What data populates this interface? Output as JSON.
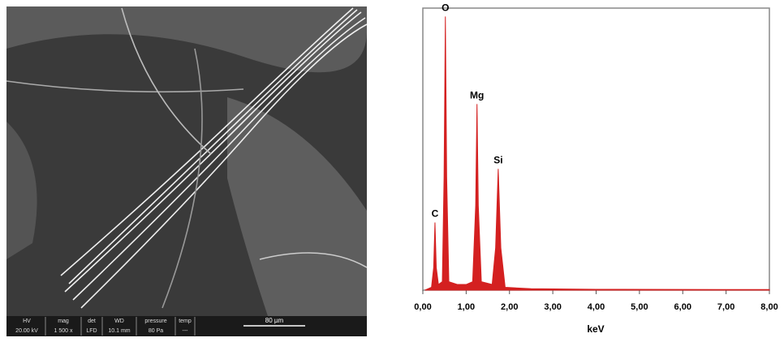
{
  "sem_image": {
    "info_bar": [
      {
        "label": "HV",
        "value": "20.00 kV"
      },
      {
        "label": "mag",
        "value": "1 500 x"
      },
      {
        "label": "det",
        "value": "LFD"
      },
      {
        "label": "WD",
        "value": "10.1 mm"
      },
      {
        "label": "pressure",
        "value": "80 Pa"
      },
      {
        "label": "temp",
        "value": "---"
      }
    ],
    "scale_bar": "80 µm"
  },
  "chart_data": {
    "type": "area",
    "x_label": "keV",
    "color": "#d42020",
    "x": [
      0.05,
      0.2,
      0.25,
      0.28,
      0.31,
      0.36,
      0.45,
      0.49,
      0.52,
      0.55,
      0.6,
      0.8,
      1.0,
      1.15,
      1.22,
      1.25,
      1.28,
      1.35,
      1.6,
      1.68,
      1.74,
      1.8,
      1.9,
      2.5,
      4.0,
      8.0
    ],
    "values": [
      0,
      1,
      8,
      24,
      8,
      2,
      3,
      40,
      97,
      40,
      3,
      2,
      2,
      3,
      30,
      66,
      30,
      3,
      2,
      15,
      43,
      15,
      1,
      0.5,
      0.3,
      0.2
    ],
    "annotations": [
      {
        "text": "C",
        "x": 0.28,
        "y": 24
      },
      {
        "text": "O",
        "x": 0.52,
        "y": 97
      },
      {
        "text": "Mg",
        "x": 1.25,
        "y": 66
      },
      {
        "text": "Si",
        "x": 1.74,
        "y": 43
      }
    ],
    "xlim": [
      0,
      8
    ],
    "ylim": [
      0,
      100
    ],
    "xticks": [
      {
        "value": 0,
        "label": "0,00"
      },
      {
        "value": 1,
        "label": "1,00"
      },
      {
        "value": 2,
        "label": "2,00"
      },
      {
        "value": 3,
        "label": "3,00"
      },
      {
        "value": 4,
        "label": "4,00"
      },
      {
        "value": 5,
        "label": "5,00"
      },
      {
        "value": 6,
        "label": "6,00"
      },
      {
        "value": 7,
        "label": "7,00"
      },
      {
        "value": 8,
        "label": "8,00"
      }
    ]
  }
}
